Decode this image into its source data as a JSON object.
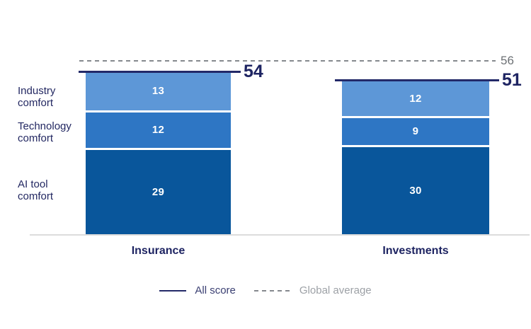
{
  "chart_data": {
    "type": "bar",
    "subtype": "stacked-column",
    "categories": [
      "Insurance",
      "Investments"
    ],
    "series": [
      {
        "name": "Industry comfort",
        "values": [
          13,
          12
        ],
        "color": "#5d97d7"
      },
      {
        "name": "Technology comfort",
        "values": [
          12,
          9
        ],
        "color": "#2e76c4"
      },
      {
        "name": "AI tool comfort",
        "values": [
          29,
          30
        ],
        "color": "#09569b"
      }
    ],
    "totals": {
      "label": "All score",
      "values": [
        54,
        51
      ]
    },
    "reference_line": {
      "label": "Global average",
      "value": 56
    },
    "legend": [
      "All score",
      "Global average"
    ],
    "ylim": [
      0,
      60
    ],
    "grid": false,
    "legend_position": "bottom-center"
  },
  "colors": {
    "segment_light": "#5d97d7",
    "segment_mid": "#2e76c4",
    "segment_dark": "#09569b",
    "all_score_line": "#232968",
    "text_navy": "#1e2462",
    "reference_gray": "#85898e",
    "reference_text_gray": "#6d7175",
    "legend_gray_text": "#9da1a6",
    "baseline_gray": "#dcdcdc"
  }
}
